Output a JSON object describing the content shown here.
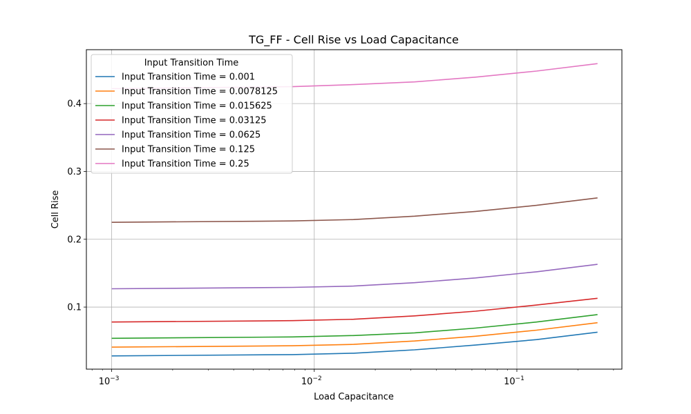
{
  "chart_data": {
    "type": "line",
    "title": "TG_FF - Cell Rise vs Load Capacitance",
    "xlabel": "Load Capacitance",
    "ylabel": "Cell Rise",
    "xscale": "log",
    "xlim": [
      0.00075,
      0.33
    ],
    "ylim": [
      0.0085,
      0.4795
    ],
    "grid": true,
    "x_ticks": [
      {
        "value": 0.001,
        "label": "10^-3",
        "base": "10",
        "exp": "−3"
      },
      {
        "value": 0.01,
        "label": "10^-2",
        "base": "10",
        "exp": "−2"
      },
      {
        "value": 0.1,
        "label": "10^-1",
        "base": "10",
        "exp": "−1"
      }
    ],
    "y_ticks": [
      {
        "value": 0.1,
        "label": "0.1"
      },
      {
        "value": 0.2,
        "label": "0.2"
      },
      {
        "value": 0.3,
        "label": "0.3"
      },
      {
        "value": 0.4,
        "label": "0.4"
      }
    ],
    "legend": {
      "title": "Input Transition Time",
      "placement": "upper-left"
    },
    "x": [
      0.001,
      0.0078125,
      0.015625,
      0.03125,
      0.0625,
      0.125,
      0.25
    ],
    "series": [
      {
        "name": "Input Transition Time = 0.001",
        "color": "#1f77b4",
        "values": [
          0.028,
          0.03,
          0.032,
          0.037,
          0.044,
          0.052,
          0.063
        ]
      },
      {
        "name": "Input Transition Time = 0.0078125",
        "color": "#ff7f0e",
        "values": [
          0.041,
          0.043,
          0.045,
          0.05,
          0.057,
          0.066,
          0.077
        ]
      },
      {
        "name": "Input Transition Time = 0.015625",
        "color": "#2ca02c",
        "values": [
          0.054,
          0.056,
          0.058,
          0.062,
          0.069,
          0.078,
          0.089
        ]
      },
      {
        "name": "Input Transition Time = 0.03125",
        "color": "#d62728",
        "values": [
          0.078,
          0.08,
          0.082,
          0.087,
          0.094,
          0.103,
          0.113
        ]
      },
      {
        "name": "Input Transition Time = 0.0625",
        "color": "#9467bd",
        "values": [
          0.127,
          0.129,
          0.131,
          0.136,
          0.143,
          0.152,
          0.163
        ]
      },
      {
        "name": "Input Transition Time = 0.125",
        "color": "#8c564b",
        "values": [
          0.225,
          0.227,
          0.229,
          0.234,
          0.241,
          0.25,
          0.261
        ]
      },
      {
        "name": "Input Transition Time = 0.25",
        "color": "#e377c2",
        "values": [
          0.422,
          0.425,
          0.428,
          0.432,
          0.439,
          0.448,
          0.459
        ]
      }
    ]
  }
}
